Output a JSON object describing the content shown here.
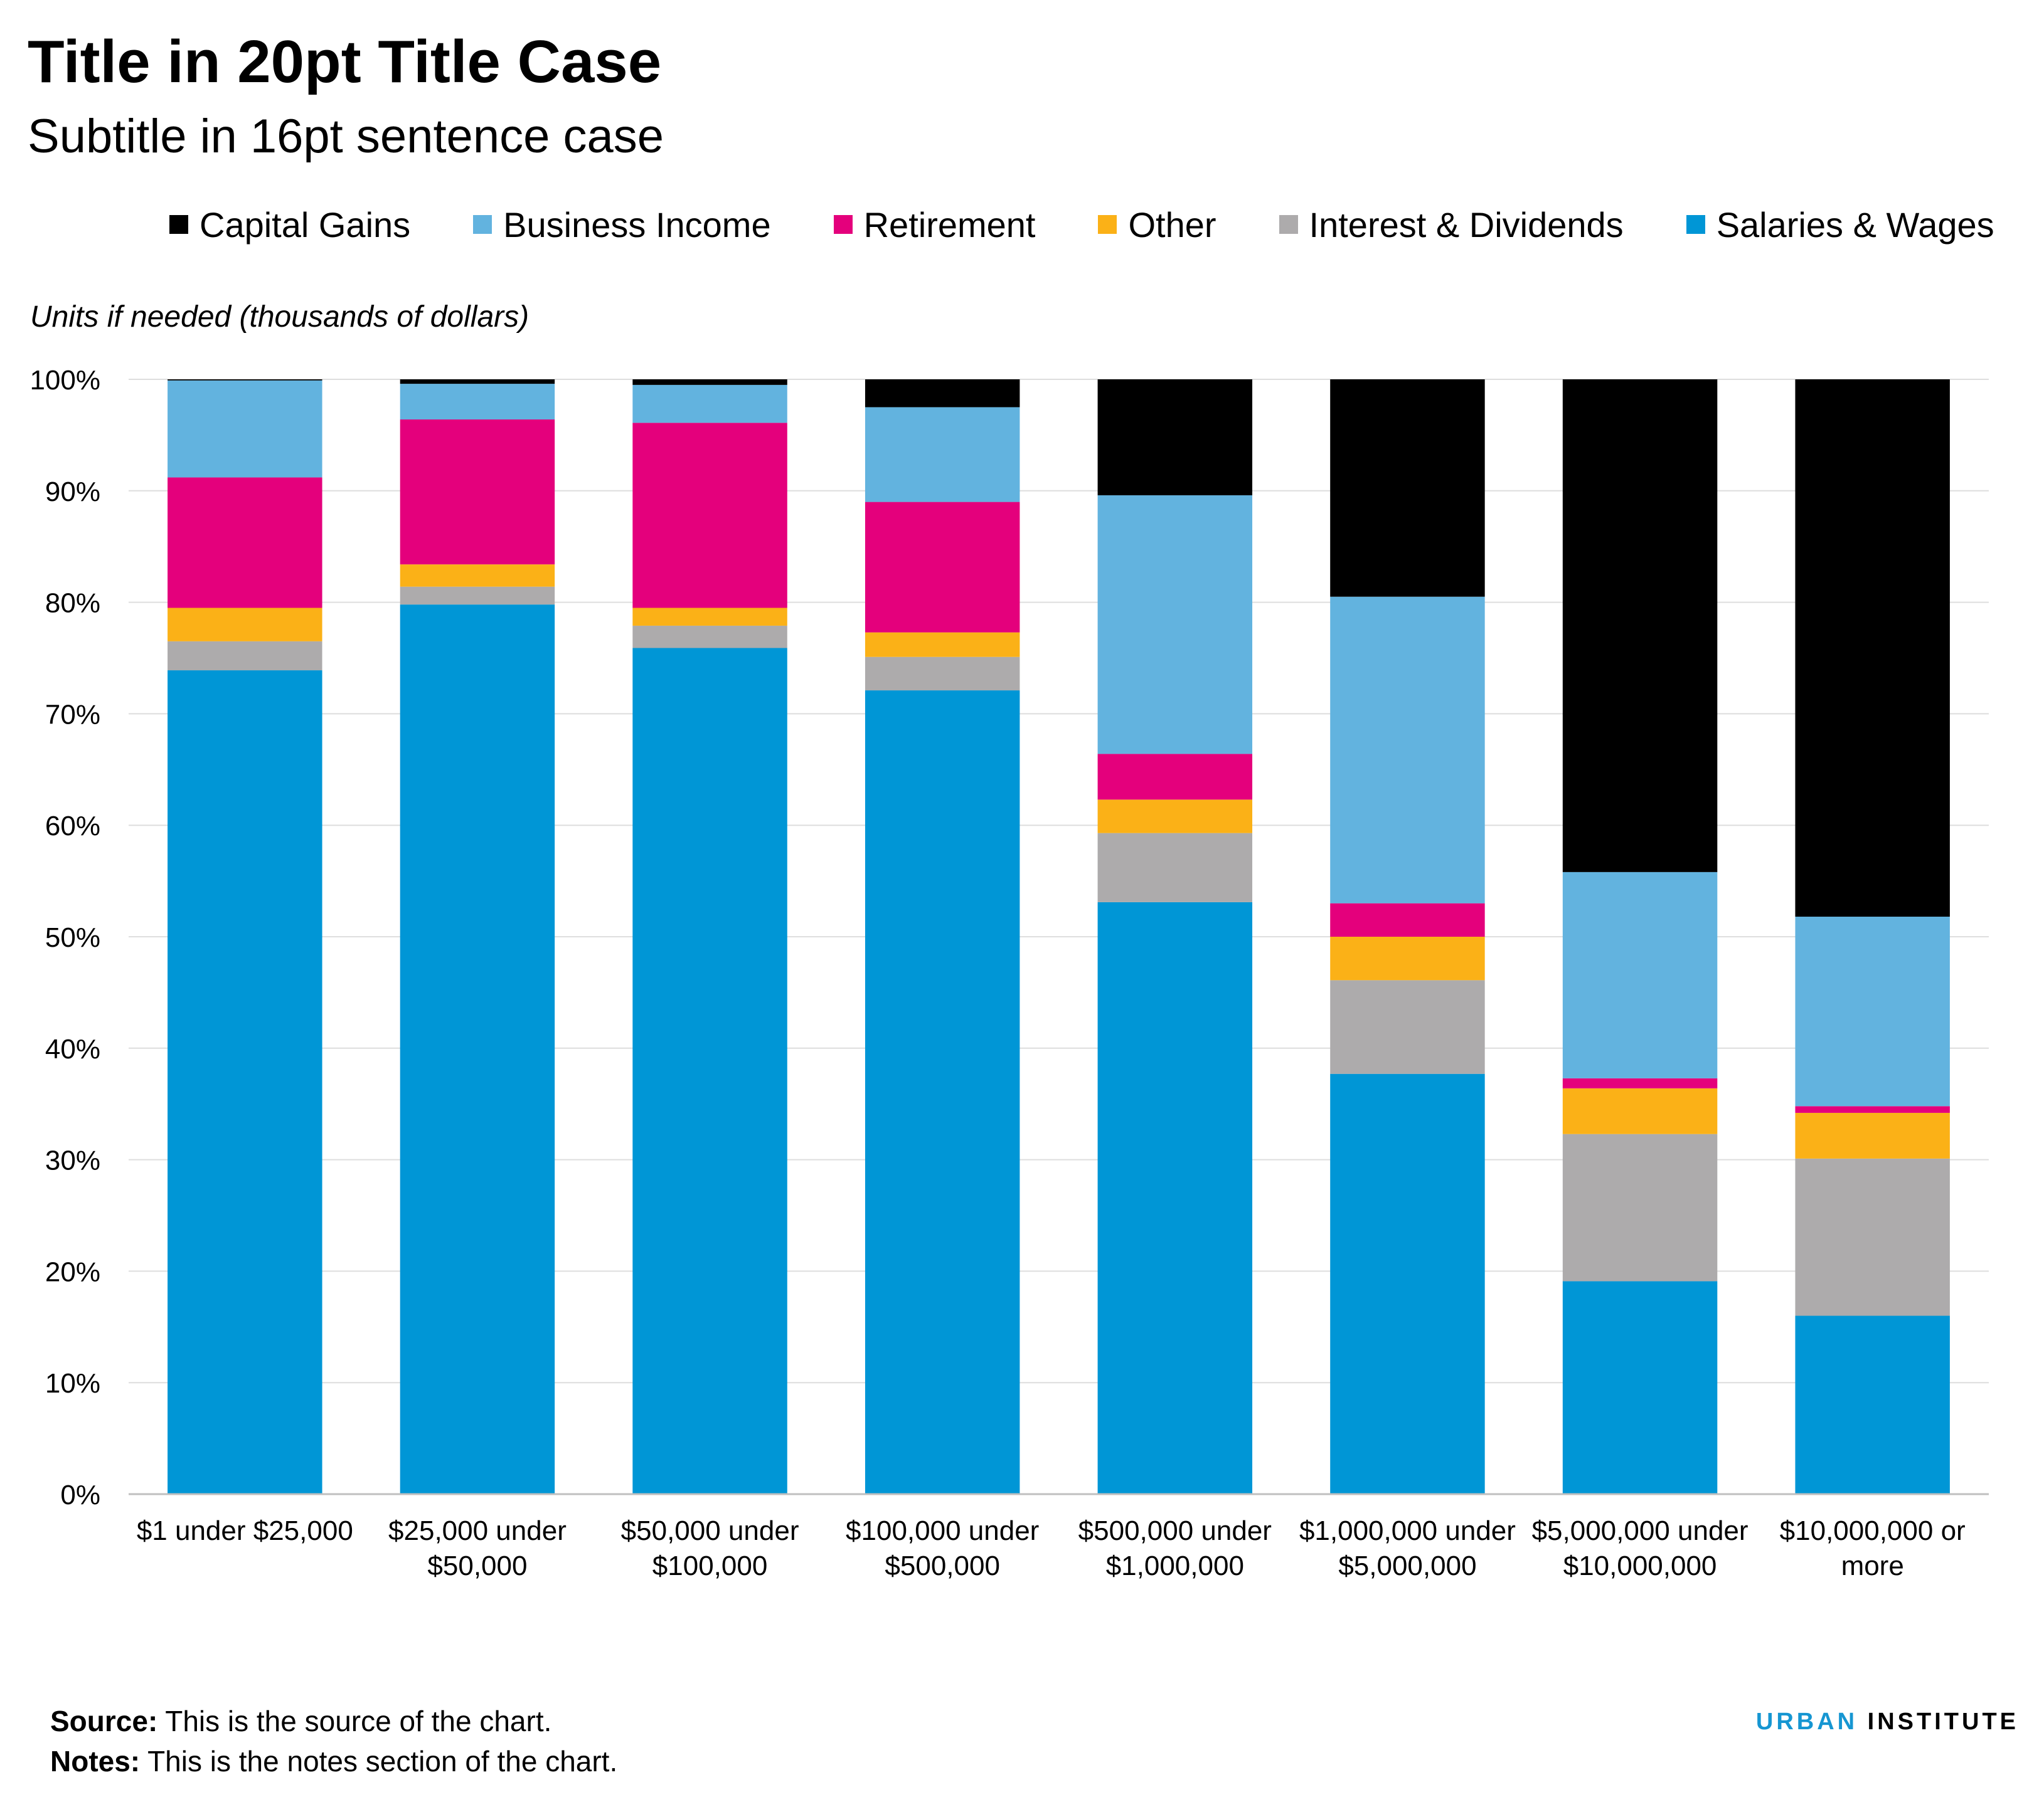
{
  "title": "Title in 20pt Title Case",
  "subtitle": "Subtitle in 16pt sentence case",
  "units_label": "Units if needed (thousands of dollars)",
  "footer": {
    "source_label": "Source:",
    "source_text": "This is the source of the chart.",
    "notes_label": "Notes:",
    "notes_text": "This is the notes section of the chart."
  },
  "brand": {
    "part1": "URBAN",
    "part2": "INSTITUTE"
  },
  "chart_data": {
    "type": "bar",
    "stacked": true,
    "categories": [
      [
        "$1 under $25,000"
      ],
      [
        "$25,000 under",
        "$50,000"
      ],
      [
        "$50,000 under",
        "$100,000"
      ],
      [
        "$100,000 under",
        "$500,000"
      ],
      [
        "$500,000 under",
        "$1,000,000"
      ],
      [
        "$1,000,000 under",
        "$5,000,000"
      ],
      [
        "$5,000,000 under",
        "$10,000,000"
      ],
      [
        "$10,000,000 or",
        "more"
      ]
    ],
    "series": [
      {
        "name": "Salaries & Wages",
        "color": "#0096d6",
        "values": [
          73.9,
          79.8,
          75.9,
          72.1,
          53.1,
          37.7,
          19.1,
          16.0
        ]
      },
      {
        "name": "Interest & Dividends",
        "color": "#adabac",
        "values": [
          2.6,
          1.6,
          2.0,
          3.0,
          6.2,
          8.4,
          13.2,
          14.1
        ]
      },
      {
        "name": "Other",
        "color": "#fbb117",
        "values": [
          3.0,
          2.0,
          1.6,
          2.2,
          3.0,
          3.9,
          4.1,
          4.1
        ]
      },
      {
        "name": "Retirement",
        "color": "#e4007c",
        "values": [
          11.7,
          13.0,
          16.6,
          11.7,
          4.1,
          3.0,
          0.9,
          0.6
        ]
      },
      {
        "name": "Business Income",
        "color": "#62b3df",
        "values": [
          8.7,
          3.2,
          3.4,
          8.5,
          23.2,
          27.5,
          18.5,
          17.0
        ]
      },
      {
        "name": "Capital Gains",
        "color": "#000000",
        "values": [
          0.1,
          0.4,
          0.5,
          2.5,
          10.4,
          19.5,
          44.2,
          48.2
        ]
      }
    ],
    "legend_order": [
      "Capital Gains",
      "Business Income",
      "Retirement",
      "Other",
      "Interest & Dividends",
      "Salaries & Wages"
    ],
    "legend_position": "top",
    "ylim": [
      0,
      100
    ],
    "yticks": [
      "0%",
      "10%",
      "20%",
      "30%",
      "40%",
      "50%",
      "60%",
      "70%",
      "80%",
      "90%",
      "100%"
    ],
    "grid": true,
    "xlabel": "",
    "ylabel": ""
  }
}
